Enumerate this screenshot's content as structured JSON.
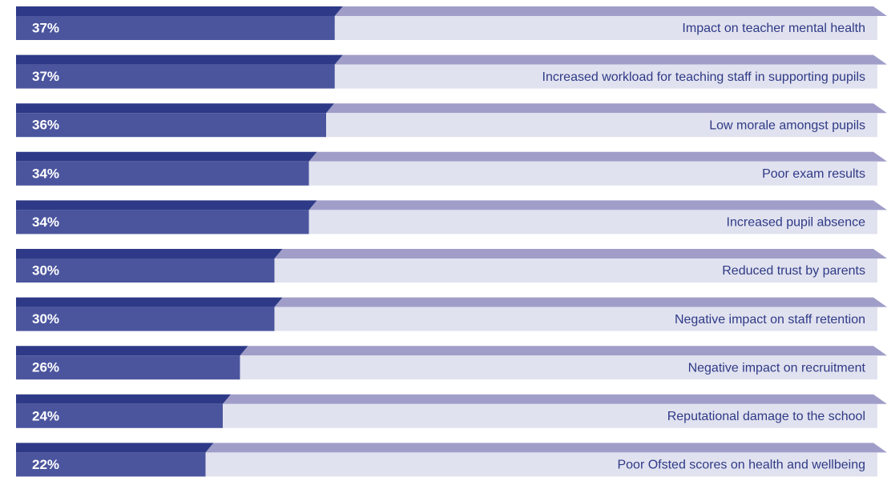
{
  "chart_data": {
    "type": "bar",
    "categories": [
      "Impact on teacher mental health",
      "Increased workload for teaching staff in supporting pupils",
      "Low morale amongst pupils",
      "Poor exam results",
      "Increased pupil absence",
      "Reduced trust by parents",
      "Negative impact on staff retention",
      "Negative impact on recruitment",
      "Reputational damage to the school",
      "Poor Ofsted scores on health and wellbeing"
    ],
    "values": [
      37,
      37,
      36,
      34,
      34,
      30,
      30,
      26,
      24,
      22
    ],
    "value_labels": [
      "37%",
      "37%",
      "36%",
      "34%",
      "34%",
      "30%",
      "30%",
      "26%",
      "24%",
      "22%"
    ],
    "xlim": [
      0,
      100
    ],
    "color": "#4b559e"
  }
}
